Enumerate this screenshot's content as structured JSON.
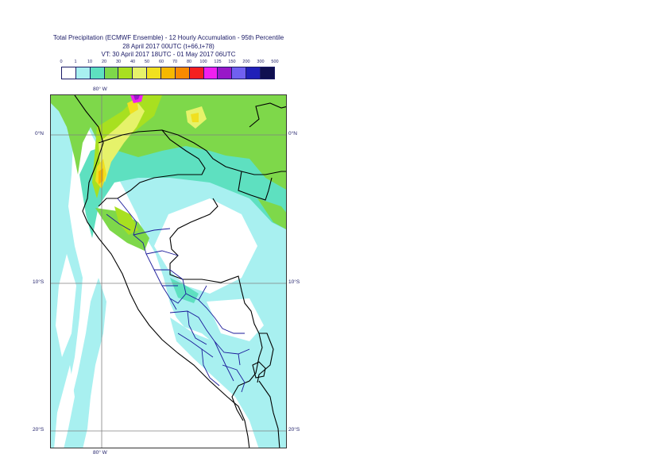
{
  "title": {
    "line1": "Total Precipitation (ECMWF Ensemble) - 12 Hourly Accumulation - 95th Percentile",
    "line2": "28 April 2017 00UTC (t+66,t+78)",
    "line3": "VT: 30 April 2017 18UTC - 01 May 2017 06UTC"
  },
  "legend": {
    "labels": [
      "0",
      "1",
      "10",
      "20",
      "30",
      "40",
      "50",
      "60",
      "70",
      "80",
      "100",
      "125",
      "150",
      "200",
      "300",
      "500"
    ],
    "colors": [
      "#ffffff",
      "#a8f0f0",
      "#5ee0c0",
      "#7ed84a",
      "#a8e020",
      "#e6f26a",
      "#f0e020",
      "#f6b800",
      "#f98a00",
      "#f52020",
      "#f020f0",
      "#9818c8",
      "#7060f0",
      "#2020b8",
      "#101050"
    ]
  },
  "map": {
    "lon_labels": {
      "top": "80° W",
      "bottom": "80° W"
    },
    "lat_labels": {
      "n0": "0°N",
      "s10": "10°S",
      "s20": "20°S"
    }
  }
}
